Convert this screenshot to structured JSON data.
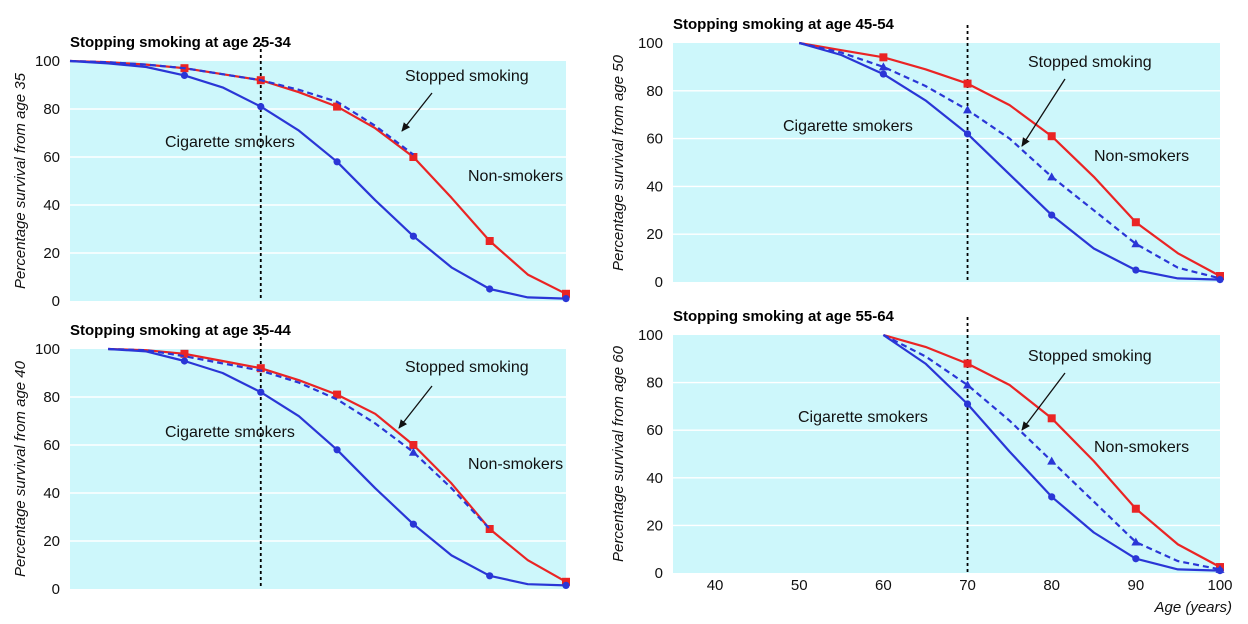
{
  "figure": {
    "xlabel": "Age (years)",
    "colors": {
      "background": "#cdf7fb",
      "gridline": "#ffffff",
      "cigarette_smokers": "#2a36d6",
      "non_smokers": "#ea2424",
      "stopped_smoking": "#2a36d6",
      "quit_marker_line": "#000000"
    }
  },
  "chart_data": [
    {
      "type": "line",
      "title": "Stopping smoking at age 25-34",
      "ylabel": "Percentage survival from age 35",
      "xlim": [
        35,
        100
      ],
      "ylim": [
        0,
        100
      ],
      "yticks": [
        0,
        20,
        40,
        60,
        80,
        100
      ],
      "xticks": [],
      "quit_age": 60,
      "series": [
        {
          "name": "Non-smokers",
          "x": [
            35,
            40,
            45,
            50,
            55,
            60,
            65,
            70,
            75,
            80,
            85,
            90,
            95,
            100
          ],
          "y": [
            100,
            99.5,
            98.5,
            97,
            94.5,
            92,
            87,
            81,
            72,
            60,
            43,
            25,
            11,
            3
          ],
          "markers_x": [
            50,
            60,
            70,
            80,
            90,
            100
          ]
        },
        {
          "name": "Stopped smoking",
          "x": [
            35,
            40,
            45,
            50,
            55,
            60,
            65,
            70,
            75,
            80
          ],
          "y": [
            100,
            99.5,
            98.5,
            97,
            94.5,
            92,
            88,
            83,
            73,
            61
          ]
        },
        {
          "name": "Cigarette smokers",
          "x": [
            35,
            40,
            45,
            50,
            55,
            60,
            65,
            70,
            75,
            80,
            85,
            90,
            95,
            100
          ],
          "y": [
            100,
            99,
            97.5,
            94,
            89,
            81,
            71,
            58,
            42,
            27,
            14,
            5,
            1.5,
            1
          ],
          "markers_x": [
            50,
            60,
            70,
            80,
            90,
            100
          ]
        }
      ],
      "annotations": {
        "stopped": "Stopped smoking",
        "smokers": "Cigarette smokers",
        "nonsmokers": "Non-smokers"
      }
    },
    {
      "type": "line",
      "title": "Stopping smoking at age 35-44",
      "ylabel": "Percentage survival from age 40",
      "xlim": [
        35,
        100
      ],
      "ylim": [
        0,
        100
      ],
      "yticks": [
        0,
        20,
        40,
        60,
        80,
        100
      ],
      "xticks": [],
      "quit_age": 60,
      "series": [
        {
          "name": "Non-smokers",
          "x": [
            40,
            45,
            50,
            55,
            60,
            65,
            70,
            75,
            80,
            85,
            90,
            95,
            100
          ],
          "y": [
            100,
            99.5,
            98,
            95,
            92,
            87,
            81,
            73,
            60,
            44,
            25,
            12,
            3
          ],
          "markers_x": [
            50,
            60,
            70,
            80,
            90,
            100
          ]
        },
        {
          "name": "Stopped smoking",
          "x": [
            40,
            45,
            50,
            55,
            60,
            65,
            70,
            75,
            80,
            85,
            90
          ],
          "y": [
            100,
            99.5,
            97,
            94,
            91,
            86,
            79,
            69,
            57,
            42,
            25
          ],
          "markers_x": [
            80
          ]
        },
        {
          "name": "Cigarette smokers",
          "x": [
            40,
            45,
            50,
            55,
            60,
            65,
            70,
            75,
            80,
            85,
            90,
            95,
            100
          ],
          "y": [
            100,
            99,
            95,
            90,
            82,
            72,
            58,
            42,
            27,
            14,
            5.5,
            2,
            1.5
          ],
          "markers_x": [
            50,
            60,
            70,
            80,
            90,
            100
          ]
        }
      ],
      "annotations": {
        "stopped": "Stopped smoking",
        "smokers": "Cigarette smokers",
        "nonsmokers": "Non-smokers"
      }
    },
    {
      "type": "line",
      "title": "Stopping smoking at age 45-54",
      "ylabel": "Percentage survival from age 50",
      "xlim": [
        35,
        100
      ],
      "ylim": [
        0,
        100
      ],
      "yticks": [
        0,
        20,
        40,
        60,
        80,
        100
      ],
      "xticks": [],
      "quit_age": 70,
      "series": [
        {
          "name": "Non-smokers",
          "x": [
            50,
            55,
            60,
            65,
            70,
            75,
            80,
            85,
            90,
            95,
            100
          ],
          "y": [
            100,
            97,
            94,
            89,
            83,
            74,
            61,
            44,
            25,
            12,
            2.5
          ],
          "markers_x": [
            60,
            70,
            80,
            90,
            100
          ]
        },
        {
          "name": "Stopped smoking",
          "x": [
            50,
            55,
            60,
            65,
            70,
            75,
            80,
            85,
            90,
            95,
            100
          ],
          "y": [
            100,
            96,
            90,
            82,
            72,
            60,
            44,
            30,
            16,
            6,
            1.5
          ],
          "markers_x": [
            60,
            70,
            80,
            90
          ]
        },
        {
          "name": "Cigarette smokers",
          "x": [
            50,
            55,
            60,
            65,
            70,
            75,
            80,
            85,
            90,
            95,
            100
          ],
          "y": [
            100,
            95,
            87,
            76,
            62,
            45,
            28,
            14,
            5,
            1.5,
            1
          ],
          "markers_x": [
            60,
            70,
            80,
            90,
            100
          ]
        }
      ],
      "annotations": {
        "stopped": "Stopped smoking",
        "smokers": "Cigarette smokers",
        "nonsmokers": "Non-smokers"
      }
    },
    {
      "type": "line",
      "title": "Stopping smoking at age 55-64",
      "ylabel": "Percentage survival from age 60",
      "xlabel": "Age (years)",
      "xlim": [
        35,
        100
      ],
      "ylim": [
        0,
        100
      ],
      "yticks": [
        0,
        20,
        40,
        60,
        80,
        100
      ],
      "xticks": [
        40,
        50,
        60,
        70,
        80,
        90,
        100
      ],
      "quit_age": 70,
      "series": [
        {
          "name": "Non-smokers",
          "x": [
            60,
            65,
            70,
            75,
            80,
            85,
            90,
            95,
            100
          ],
          "y": [
            100,
            95,
            88,
            79,
            65,
            47,
            27,
            12,
            2.5
          ],
          "markers_x": [
            70,
            80,
            90,
            100
          ]
        },
        {
          "name": "Stopped smoking",
          "x": [
            60,
            65,
            70,
            75,
            80,
            85,
            90,
            95,
            100
          ],
          "y": [
            100,
            91,
            79,
            64,
            47,
            30,
            13,
            5,
            1.5
          ],
          "markers_x": [
            70,
            80,
            90,
            100
          ]
        },
        {
          "name": "Cigarette smokers",
          "x": [
            60,
            65,
            70,
            75,
            80,
            85,
            90,
            95,
            100
          ],
          "y": [
            100,
            88,
            71,
            51,
            32,
            17,
            6,
            1.5,
            1
          ],
          "markers_x": [
            70,
            80,
            90,
            100
          ]
        }
      ],
      "annotations": {
        "stopped": "Stopped smoking",
        "smokers": "Cigarette smokers",
        "nonsmokers": "Non-smokers"
      }
    }
  ]
}
